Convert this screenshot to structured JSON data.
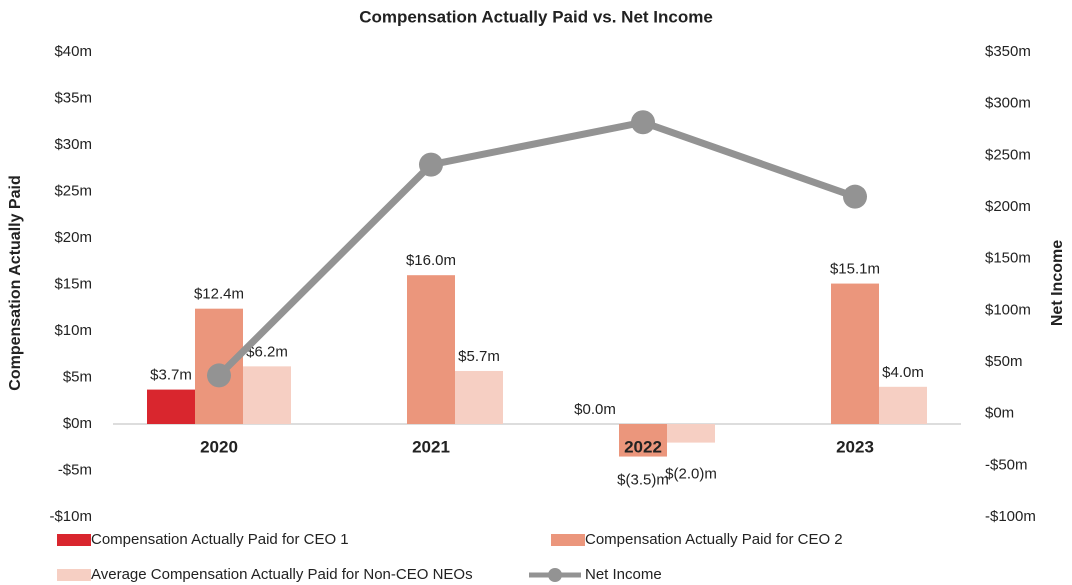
{
  "chart_data": {
    "type": "bar",
    "title": "Compensation Actually Paid vs. Net Income",
    "y_label": "Compensation Actually Paid",
    "y2_label": "Net Income",
    "categories": [
      "2020",
      "2021",
      "2022",
      "2023"
    ],
    "series": [
      {
        "name": "Compensation Actually Paid for CEO 1",
        "color": "#d9262e",
        "values": [
          3.7,
          null,
          0.0,
          null
        ],
        "value_labels": [
          "$3.7m",
          null,
          "$0.0m",
          null
        ]
      },
      {
        "name": "Compensation Actually Paid for CEO 2",
        "color": "#eb967c",
        "values": [
          12.4,
          16.0,
          -3.5,
          15.1
        ],
        "value_labels": [
          "$12.4m",
          "$16.0m",
          "$(3.5)m",
          "$15.1m"
        ]
      },
      {
        "name": "Average Compensation Actually Paid for Non-CEO NEOs",
        "color": "#f6cfc3",
        "values": [
          6.2,
          5.7,
          -2.0,
          4.0
        ],
        "value_labels": [
          "$6.2m",
          "$5.7m",
          "$(2.0)m",
          "$4.0m"
        ]
      },
      {
        "name": "Net Income",
        "type": "line",
        "axis": "y2",
        "color": "#939393",
        "values": [
          37,
          241,
          282,
          210
        ]
      }
    ],
    "ylim": [
      -10,
      40
    ],
    "yticks": [
      {
        "value": -10,
        "label": "-$10m"
      },
      {
        "value": -5,
        "label": "-$5m"
      },
      {
        "value": 0,
        "label": "$0m"
      },
      {
        "value": 5,
        "label": "$5m"
      },
      {
        "value": 10,
        "label": "$10m"
      },
      {
        "value": 15,
        "label": "$15m"
      },
      {
        "value": 20,
        "label": "$20m"
      },
      {
        "value": 25,
        "label": "$25m"
      },
      {
        "value": 30,
        "label": "$30m"
      },
      {
        "value": 35,
        "label": "$35m"
      },
      {
        "value": 40,
        "label": "$40m"
      }
    ],
    "y2lim": [
      -100,
      350
    ],
    "y2ticks": [
      {
        "value": -100,
        "label": "-$100m"
      },
      {
        "value": -50,
        "label": "-$50m"
      },
      {
        "value": 0,
        "label": "$0m"
      },
      {
        "value": 50,
        "label": "$50m"
      },
      {
        "value": 100,
        "label": "$100m"
      },
      {
        "value": 150,
        "label": "$150m"
      },
      {
        "value": 200,
        "label": "$200m"
      },
      {
        "value": 250,
        "label": "$250m"
      },
      {
        "value": 300,
        "label": "$300m"
      },
      {
        "value": 350,
        "label": "$350m"
      }
    ],
    "legend": "bottom"
  }
}
